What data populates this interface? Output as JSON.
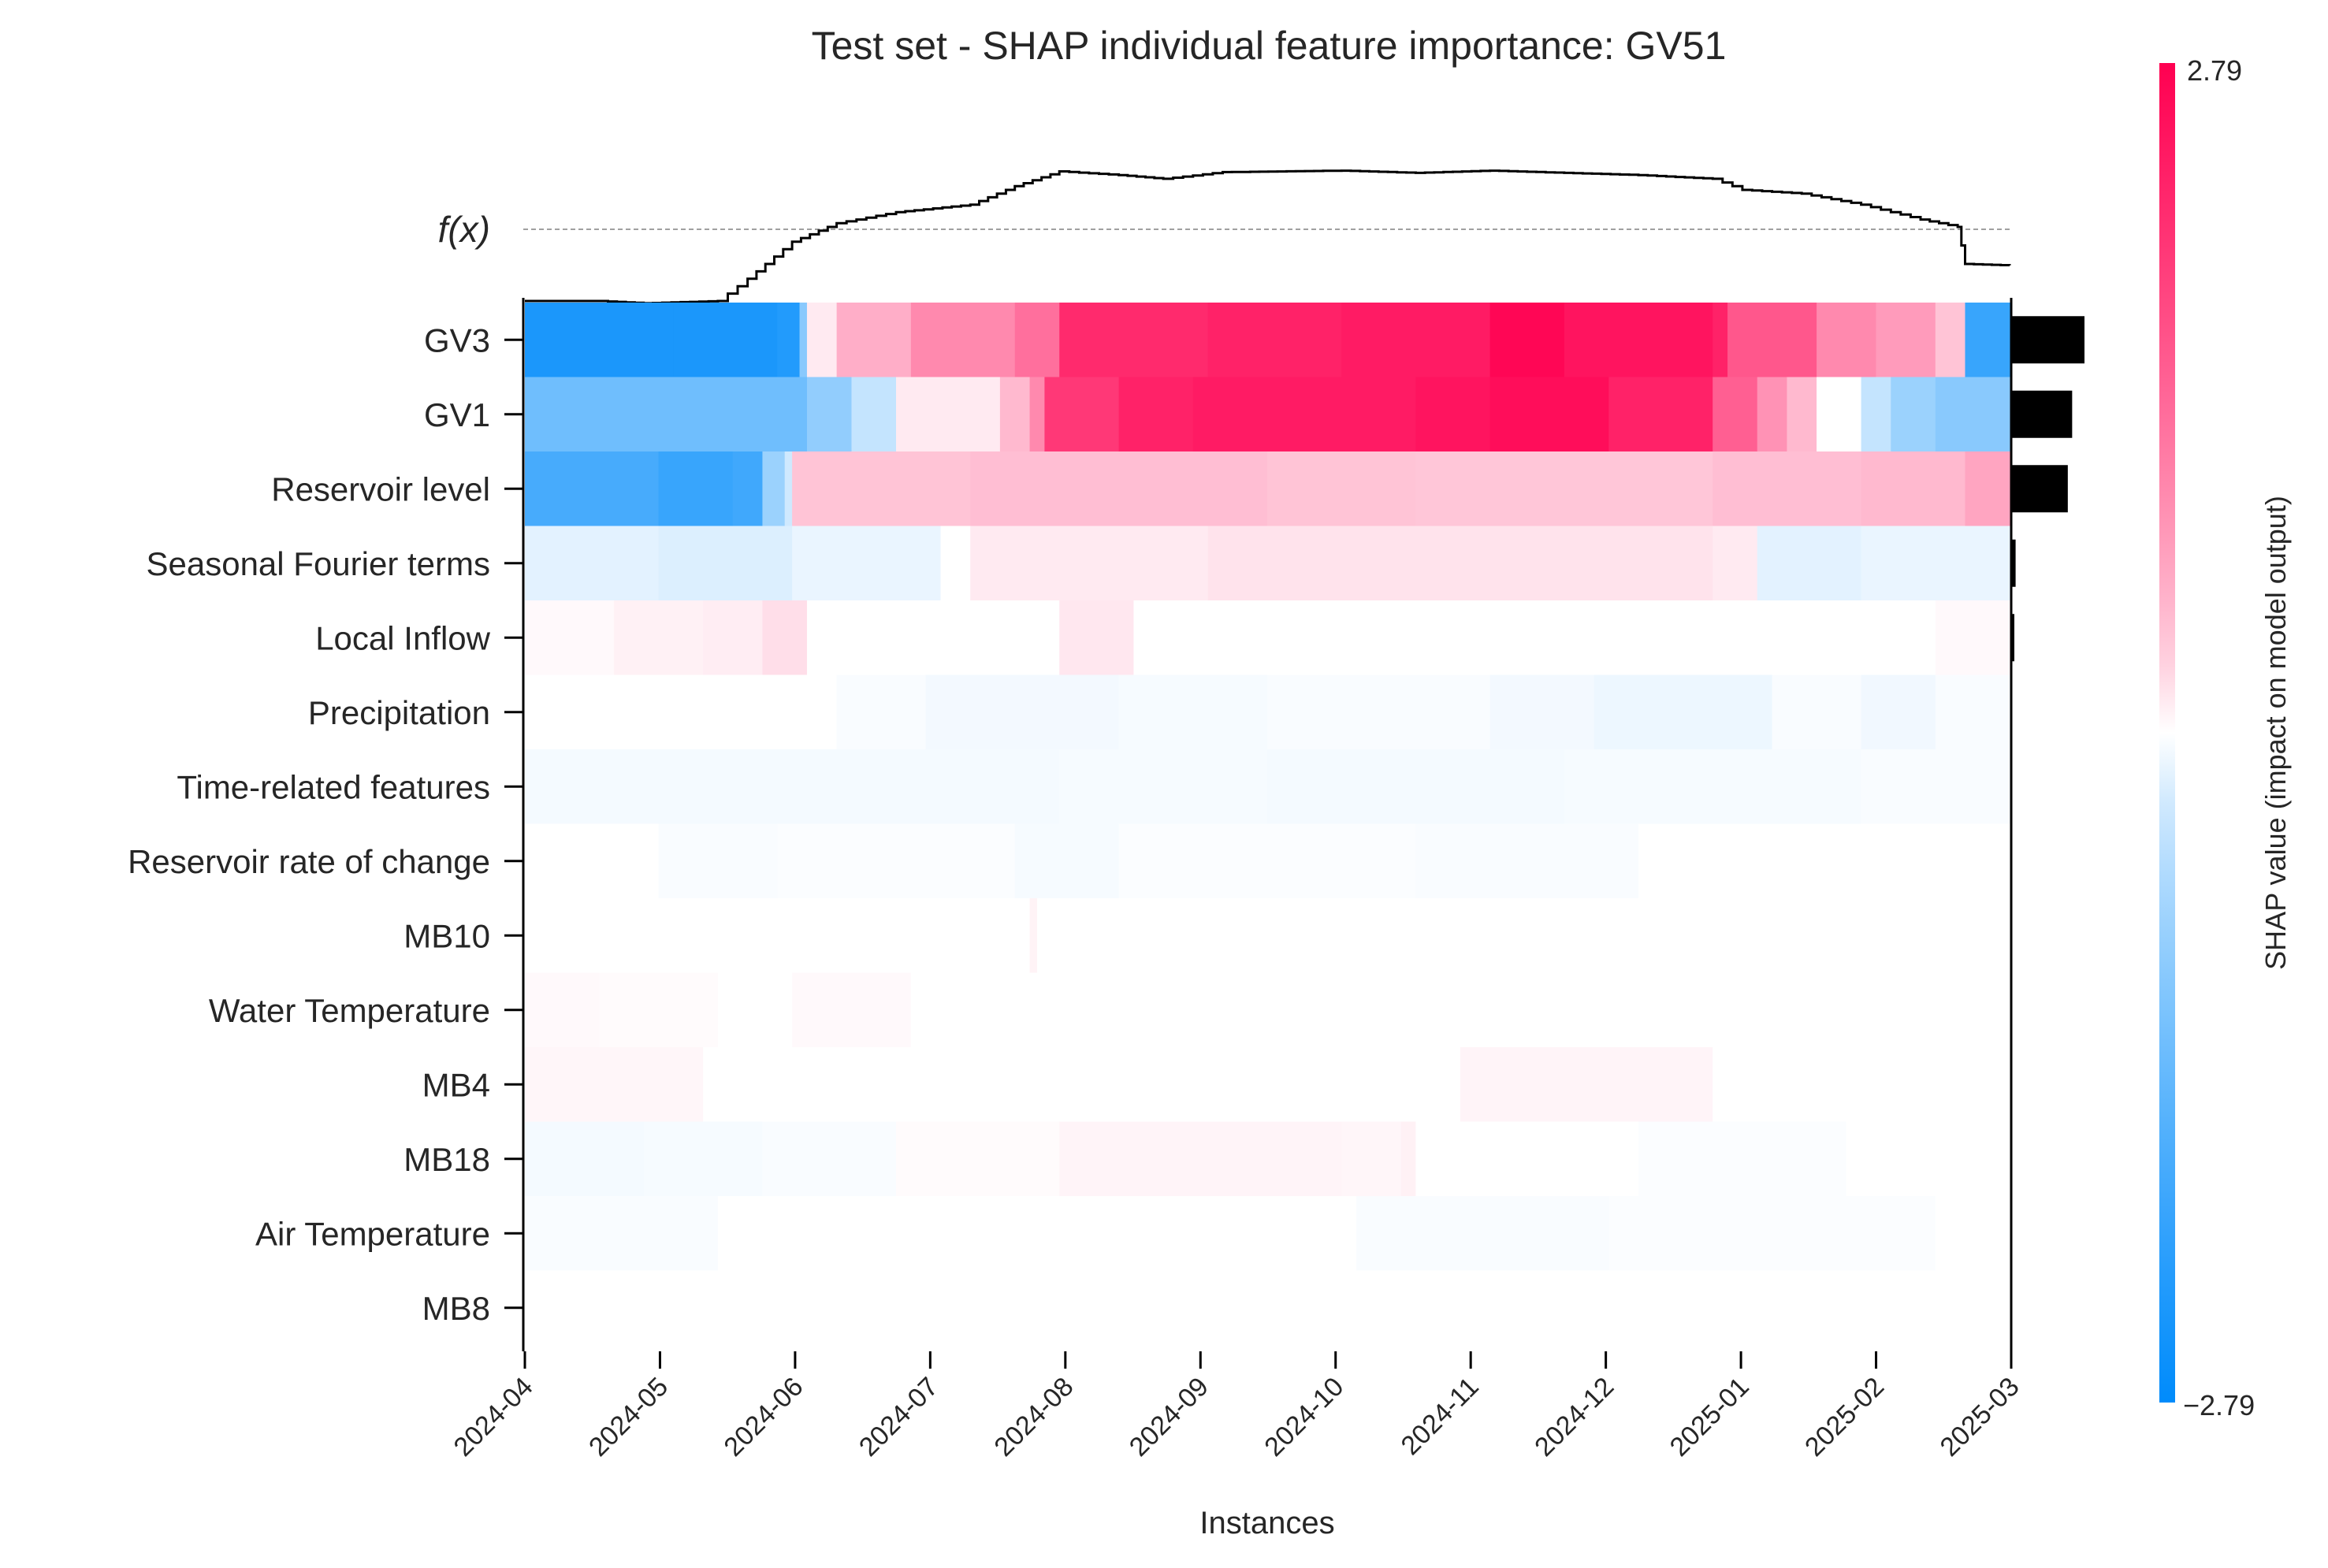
{
  "chart_data": {
    "type": "heatmap",
    "title": "Test set - SHAP individual feature importance: GV51",
    "xlabel": "Instances",
    "fx_label": "f(x)",
    "colorbar": {
      "label": "SHAP value (impact on model output)",
      "min": -2.79,
      "max": 2.79,
      "min_label": "−2.79",
      "max_label": "2.79",
      "low_color": "#008bfb",
      "high_color": "#ff0051"
    },
    "x_ticks": [
      "2024-04",
      "2024-05",
      "2024-06",
      "2024-07",
      "2024-08",
      "2024-09",
      "2024-10",
      "2024-11",
      "2024-12",
      "2025-01",
      "2025-02",
      "2025-03"
    ],
    "features": [
      {
        "name": "GV3",
        "importance": 1.0,
        "segments": [
          [
            0.0,
            -2.4
          ],
          [
            0.1,
            -2.4
          ],
          [
            0.17,
            -2.3
          ],
          [
            0.185,
            -1.0
          ],
          [
            0.19,
            0.1
          ],
          [
            0.21,
            0.6
          ],
          [
            0.26,
            1.0
          ],
          [
            0.33,
            1.3
          ],
          [
            0.36,
            2.2
          ],
          [
            0.46,
            2.3
          ],
          [
            0.55,
            2.4
          ],
          [
            0.65,
            2.7
          ],
          [
            0.7,
            2.5
          ],
          [
            0.8,
            2.3
          ],
          [
            0.81,
            1.6
          ],
          [
            0.87,
            1.0
          ],
          [
            0.91,
            0.8
          ],
          [
            0.95,
            0.4
          ],
          [
            0.97,
            -2.0
          ],
          [
            1.0,
            -2.0
          ]
        ]
      },
      {
        "name": "GV1",
        "importance": 0.83,
        "segments": [
          [
            0.0,
            -1.3
          ],
          [
            0.17,
            -1.3
          ],
          [
            0.19,
            -0.9
          ],
          [
            0.22,
            -0.4
          ],
          [
            0.25,
            0.1
          ],
          [
            0.32,
            0.5
          ],
          [
            0.34,
            1.0
          ],
          [
            0.35,
            2.0
          ],
          [
            0.4,
            2.3
          ],
          [
            0.45,
            2.4
          ],
          [
            0.6,
            2.5
          ],
          [
            0.65,
            2.6
          ],
          [
            0.73,
            2.3
          ],
          [
            0.77,
            2.3
          ],
          [
            0.8,
            1.5
          ],
          [
            0.83,
            0.9
          ],
          [
            0.85,
            0.5
          ],
          [
            0.87,
            0.0
          ],
          [
            0.9,
            -0.4
          ],
          [
            0.92,
            -0.8
          ],
          [
            0.95,
            -1.0
          ],
          [
            1.0,
            -1.3
          ]
        ]
      },
      {
        "name": "Reservoir level",
        "importance": 0.77,
        "segments": [
          [
            0.0,
            -1.8
          ],
          [
            0.09,
            -2.0
          ],
          [
            0.14,
            -1.9
          ],
          [
            0.16,
            -0.8
          ],
          [
            0.175,
            -0.3
          ],
          [
            0.18,
            0.4
          ],
          [
            0.3,
            0.45
          ],
          [
            0.5,
            0.4
          ],
          [
            0.6,
            0.38
          ],
          [
            0.8,
            0.45
          ],
          [
            0.9,
            0.5
          ],
          [
            0.97,
            0.7
          ],
          [
            1.0,
            0.7
          ]
        ]
      },
      {
        "name": "Seasonal Fourier terms",
        "importance": 0.05,
        "segments": [
          [
            0.0,
            -0.15
          ],
          [
            0.09,
            -0.2
          ],
          [
            0.18,
            -0.1
          ],
          [
            0.28,
            0.0
          ],
          [
            0.3,
            0.1
          ],
          [
            0.46,
            0.15
          ],
          [
            0.7,
            0.15
          ],
          [
            0.8,
            0.1
          ],
          [
            0.83,
            -0.15
          ],
          [
            0.9,
            -0.1
          ],
          [
            1.0,
            -0.1
          ]
        ]
      },
      {
        "name": "Local Inflow",
        "importance": 0.03,
        "segments": [
          [
            0.0,
            0.02
          ],
          [
            0.06,
            0.06
          ],
          [
            0.12,
            0.08
          ],
          [
            0.16,
            0.18
          ],
          [
            0.19,
            0.0
          ],
          [
            0.36,
            0.12
          ],
          [
            0.41,
            0.0
          ],
          [
            0.8,
            0.0
          ],
          [
            0.95,
            0.02
          ],
          [
            1.0,
            0.0
          ]
        ]
      },
      {
        "name": "Precipitation",
        "importance": 0.0,
        "segments": [
          [
            0.0,
            0.0
          ],
          [
            0.21,
            -0.02
          ],
          [
            0.27,
            -0.05
          ],
          [
            0.4,
            -0.03
          ],
          [
            0.5,
            -0.02
          ],
          [
            0.65,
            -0.05
          ],
          [
            0.72,
            -0.08
          ],
          [
            0.84,
            -0.02
          ],
          [
            0.9,
            -0.06
          ],
          [
            0.95,
            -0.02
          ],
          [
            1.0,
            -0.02
          ]
        ]
      },
      {
        "name": "Time-related features",
        "importance": 0.0,
        "segments": [
          [
            0.0,
            -0.04
          ],
          [
            0.36,
            -0.03
          ],
          [
            0.5,
            -0.04
          ],
          [
            0.7,
            -0.03
          ],
          [
            0.9,
            -0.02
          ],
          [
            1.0,
            -0.04
          ]
        ]
      },
      {
        "name": "Reservoir rate of change",
        "importance": 0.0,
        "segments": [
          [
            0.0,
            0.0
          ],
          [
            0.09,
            -0.02
          ],
          [
            0.17,
            -0.01
          ],
          [
            0.33,
            -0.03
          ],
          [
            0.4,
            -0.01
          ],
          [
            0.6,
            -0.02
          ],
          [
            0.75,
            0.0
          ],
          [
            1.0,
            0.0
          ]
        ]
      },
      {
        "name": "MB10",
        "importance": 0.0,
        "segments": [
          [
            0.0,
            0.0
          ],
          [
            0.34,
            0.05
          ],
          [
            0.345,
            0.0
          ],
          [
            1.0,
            0.0
          ]
        ]
      },
      {
        "name": "Water Temperature",
        "importance": 0.0,
        "segments": [
          [
            0.0,
            0.02
          ],
          [
            0.05,
            0.01
          ],
          [
            0.13,
            0.0
          ],
          [
            0.18,
            0.02
          ],
          [
            0.26,
            0.0
          ],
          [
            1.0,
            0.0
          ]
        ]
      },
      {
        "name": "MB4",
        "importance": 0.0,
        "segments": [
          [
            0.0,
            0.03
          ],
          [
            0.12,
            0.0
          ],
          [
            0.63,
            0.04
          ],
          [
            0.8,
            0.0
          ],
          [
            1.0,
            0.0
          ]
        ]
      },
      {
        "name": "MB18",
        "importance": 0.0,
        "segments": [
          [
            0.0,
            -0.04
          ],
          [
            0.08,
            -0.03
          ],
          [
            0.16,
            -0.02
          ],
          [
            0.25,
            0.01
          ],
          [
            0.36,
            0.04
          ],
          [
            0.55,
            0.03
          ],
          [
            0.59,
            0.06
          ],
          [
            0.6,
            0.0
          ],
          [
            0.75,
            -0.01
          ],
          [
            0.89,
            0.0
          ],
          [
            1.0,
            0.0
          ]
        ]
      },
      {
        "name": "Air Temperature",
        "importance": 0.0,
        "segments": [
          [
            0.0,
            -0.02
          ],
          [
            0.13,
            0.0
          ],
          [
            0.56,
            -0.02
          ],
          [
            0.73,
            -0.01
          ],
          [
            0.95,
            0.0
          ],
          [
            1.0,
            0.0
          ]
        ]
      },
      {
        "name": "MB8",
        "importance": 0.0,
        "segments": [
          [
            0.0,
            0.0
          ],
          [
            1.0,
            0.0
          ]
        ]
      }
    ],
    "fx_line": [
      [
        0.0,
        0.0
      ],
      [
        0.05,
        0.0
      ],
      [
        0.08,
        -0.03
      ],
      [
        0.13,
        0.0
      ],
      [
        0.15,
        0.3
      ],
      [
        0.18,
        0.8
      ],
      [
        0.21,
        1.05
      ],
      [
        0.25,
        1.2
      ],
      [
        0.3,
        1.3
      ],
      [
        0.33,
        1.55
      ],
      [
        0.36,
        1.75
      ],
      [
        0.4,
        1.7
      ],
      [
        0.43,
        1.65
      ],
      [
        0.47,
        1.74
      ],
      [
        0.55,
        1.76
      ],
      [
        0.6,
        1.73
      ],
      [
        0.65,
        1.76
      ],
      [
        0.7,
        1.73
      ],
      [
        0.75,
        1.7
      ],
      [
        0.8,
        1.65
      ],
      [
        0.82,
        1.5
      ],
      [
        0.86,
        1.45
      ],
      [
        0.9,
        1.3
      ],
      [
        0.94,
        1.1
      ],
      [
        0.965,
        1.0
      ],
      [
        0.97,
        0.5
      ],
      [
        1.0,
        0.48
      ]
    ],
    "fx_baseline": 1.0
  }
}
